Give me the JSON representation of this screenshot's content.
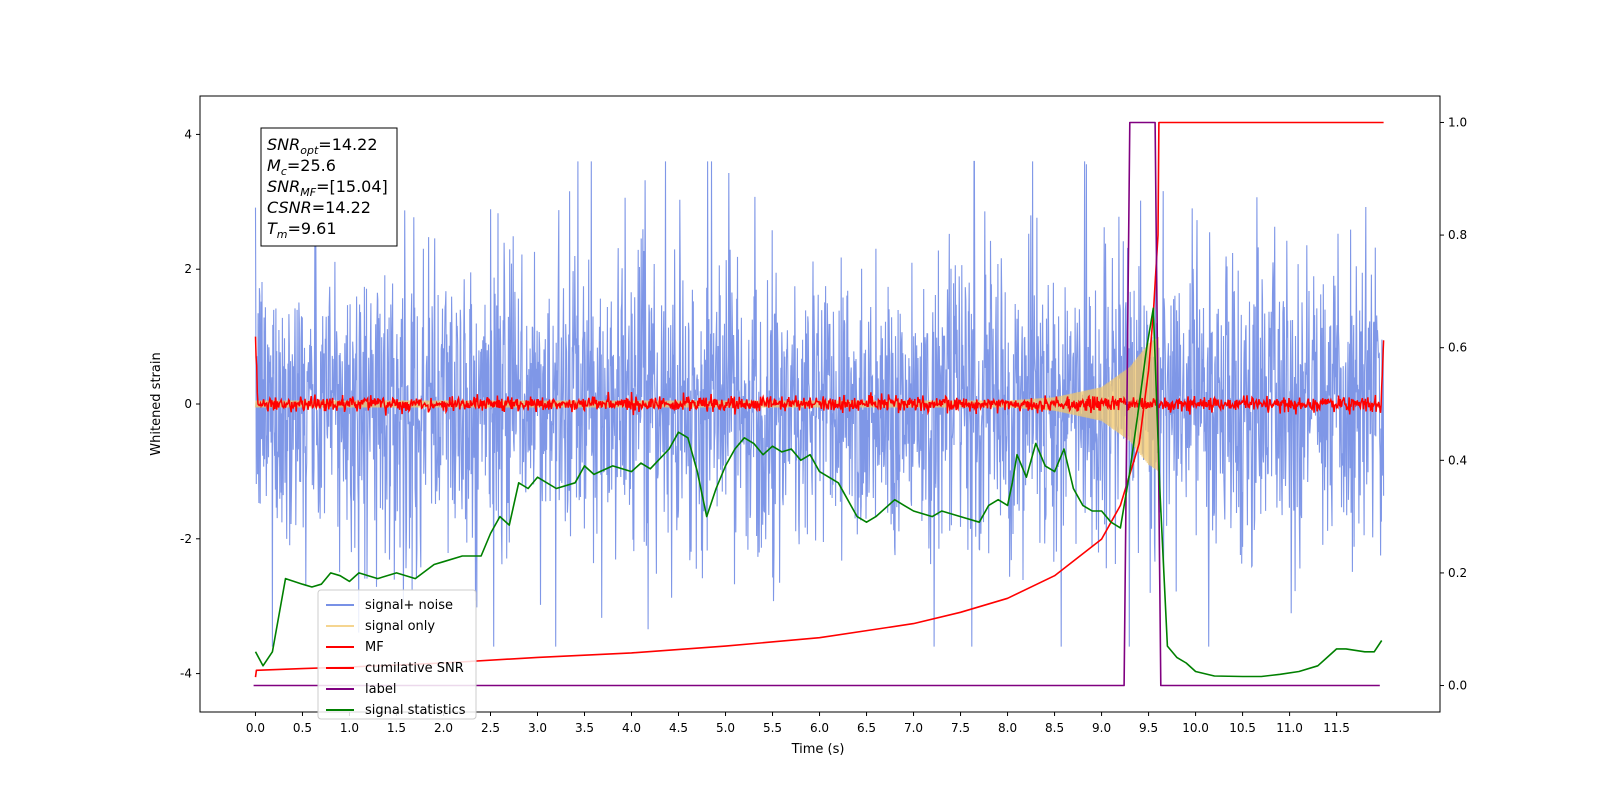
{
  "chart_data": {
    "type": "line",
    "xlabel": "Time (s)",
    "ylabel": "Whitened strain",
    "x_ticks": [
      "0.0",
      "0.5",
      "1.0",
      "1.5",
      "2.0",
      "2.5",
      "3.0",
      "3.5",
      "4.0",
      "4.5",
      "5.0",
      "5.5",
      "6.0",
      "6.5",
      "7.0",
      "7.5",
      "8.0",
      "8.5",
      "9.0",
      "9.5",
      "10.0",
      "10.5",
      "11.0",
      "11.5"
    ],
    "x_tick_values": [
      0,
      0.5,
      1,
      1.5,
      2,
      2.5,
      3,
      3.5,
      4,
      4.5,
      5,
      5.5,
      6,
      6.5,
      7,
      7.5,
      8,
      8.5,
      9,
      9.5,
      10,
      10.5,
      11,
      11.5
    ],
    "y_left_ticks": [
      4,
      2,
      0,
      -2,
      -4
    ],
    "y_right_ticks": [
      "1.0",
      "0.8",
      "0.6",
      "0.4",
      "0.2",
      "0.0"
    ],
    "y_right_tick_values": [
      1,
      0.8,
      0.6,
      0.4,
      0.2,
      0
    ],
    "xlim": [
      -0.59,
      12.6
    ],
    "ylim_left": [
      -4.57,
      4.57
    ],
    "ylim_right": [
      -0.047,
      1.047
    ],
    "grid": false,
    "legend_position": "bottom-left",
    "annotation_lines": [
      {
        "var": "SNR",
        "sub": "opt",
        "value": "=14.22"
      },
      {
        "var": "M",
        "sub": "c",
        "value": "=25.6"
      },
      {
        "var": "SNR",
        "sub": "MF",
        "value": "=[15.04]"
      },
      {
        "var": "CSNR",
        "sub": "",
        "value": "=14.22"
      },
      {
        "var": "T",
        "sub": "m",
        "value": "=9.61"
      }
    ],
    "series": [
      {
        "name": "signal+ noise",
        "axis": "left",
        "color": "#7891e6",
        "style": "noise",
        "x_range": [
          0,
          12
        ],
        "amplitude_typical": 1.9,
        "amplitude_max": 3.6
      },
      {
        "name": "signal only",
        "axis": "left",
        "color": "#f2c76b",
        "style": "chirp",
        "x_range": [
          0,
          9.61
        ],
        "envelope_x": [
          0,
          8.0,
          8.5,
          9.0,
          9.3,
          9.5,
          9.61
        ],
        "envelope_y": [
          0.05,
          0.05,
          0.1,
          0.25,
          0.55,
          0.9,
          1.0
        ]
      },
      {
        "name": "MF",
        "axis": "left",
        "color": "#ff0000",
        "style": "noise-small",
        "x_range": [
          0,
          12
        ],
        "start_value": 1.0,
        "end_value": 0.9,
        "amplitude_typical": 0.12
      },
      {
        "name": "cumilative SNR",
        "axis": "right",
        "color": "#ff0000",
        "x": [
          0,
          0.01,
          0.5,
          1,
          2,
          3,
          4,
          5,
          6,
          7,
          7.5,
          8,
          8.5,
          9,
          9.2,
          9.4,
          9.5,
          9.55,
          9.6,
          9.61,
          9.7,
          12
        ],
        "y": [
          0.015,
          0.027,
          0.03,
          0.033,
          0.04,
          0.05,
          0.058,
          0.07,
          0.085,
          0.11,
          0.13,
          0.155,
          0.195,
          0.26,
          0.32,
          0.43,
          0.56,
          0.66,
          0.8,
          1.0,
          1.0,
          1.0
        ]
      },
      {
        "name": "label",
        "axis": "right",
        "color": "#800080",
        "x": [
          -0.02,
          9.24,
          9.3,
          9.57,
          9.63,
          11.96
        ],
        "y": [
          0,
          0,
          1,
          1,
          0,
          0
        ]
      },
      {
        "name": "signal statistics",
        "axis": "right",
        "color": "#008000",
        "x": [
          0,
          0.08,
          0.18,
          0.32,
          0.5,
          0.6,
          0.7,
          0.8,
          0.9,
          1.0,
          1.1,
          1.3,
          1.5,
          1.7,
          1.9,
          2.0,
          2.2,
          2.4,
          2.5,
          2.6,
          2.7,
          2.8,
          2.9,
          3.0,
          3.2,
          3.4,
          3.5,
          3.6,
          3.8,
          4.0,
          4.1,
          4.2,
          4.4,
          4.5,
          4.6,
          4.7,
          4.8,
          4.9,
          5.0,
          5.1,
          5.2,
          5.3,
          5.4,
          5.5,
          5.6,
          5.7,
          5.8,
          5.9,
          6.0,
          6.2,
          6.4,
          6.5,
          6.6,
          6.8,
          6.9,
          7.0,
          7.2,
          7.3,
          7.5,
          7.7,
          7.8,
          7.9,
          8.0,
          8.05,
          8.1,
          8.2,
          8.3,
          8.4,
          8.5,
          8.6,
          8.7,
          8.8,
          8.9,
          9.0,
          9.1,
          9.2,
          9.3,
          9.4,
          9.48,
          9.55,
          9.62,
          9.7,
          9.8,
          9.9,
          10.0,
          10.2,
          10.5,
          10.7,
          10.9,
          11.1,
          11.3,
          11.4,
          11.5,
          11.6,
          11.8,
          11.9,
          11.98
        ],
        "y": [
          0.06,
          0.035,
          0.06,
          0.19,
          0.18,
          0.175,
          0.18,
          0.2,
          0.195,
          0.185,
          0.2,
          0.19,
          0.2,
          0.19,
          0.215,
          0.22,
          0.23,
          0.23,
          0.27,
          0.3,
          0.285,
          0.36,
          0.35,
          0.37,
          0.35,
          0.36,
          0.39,
          0.375,
          0.39,
          0.38,
          0.395,
          0.385,
          0.42,
          0.45,
          0.44,
          0.38,
          0.3,
          0.35,
          0.39,
          0.42,
          0.44,
          0.43,
          0.41,
          0.425,
          0.415,
          0.42,
          0.4,
          0.41,
          0.38,
          0.36,
          0.3,
          0.29,
          0.3,
          0.33,
          0.32,
          0.31,
          0.3,
          0.31,
          0.3,
          0.29,
          0.32,
          0.33,
          0.32,
          0.36,
          0.41,
          0.37,
          0.43,
          0.39,
          0.38,
          0.42,
          0.35,
          0.32,
          0.31,
          0.31,
          0.29,
          0.28,
          0.38,
          0.5,
          0.6,
          0.67,
          0.35,
          0.07,
          0.05,
          0.04,
          0.025,
          0.017,
          0.016,
          0.016,
          0.02,
          0.025,
          0.035,
          0.05,
          0.065,
          0.065,
          0.06,
          0.06,
          0.08
        ]
      }
    ]
  }
}
